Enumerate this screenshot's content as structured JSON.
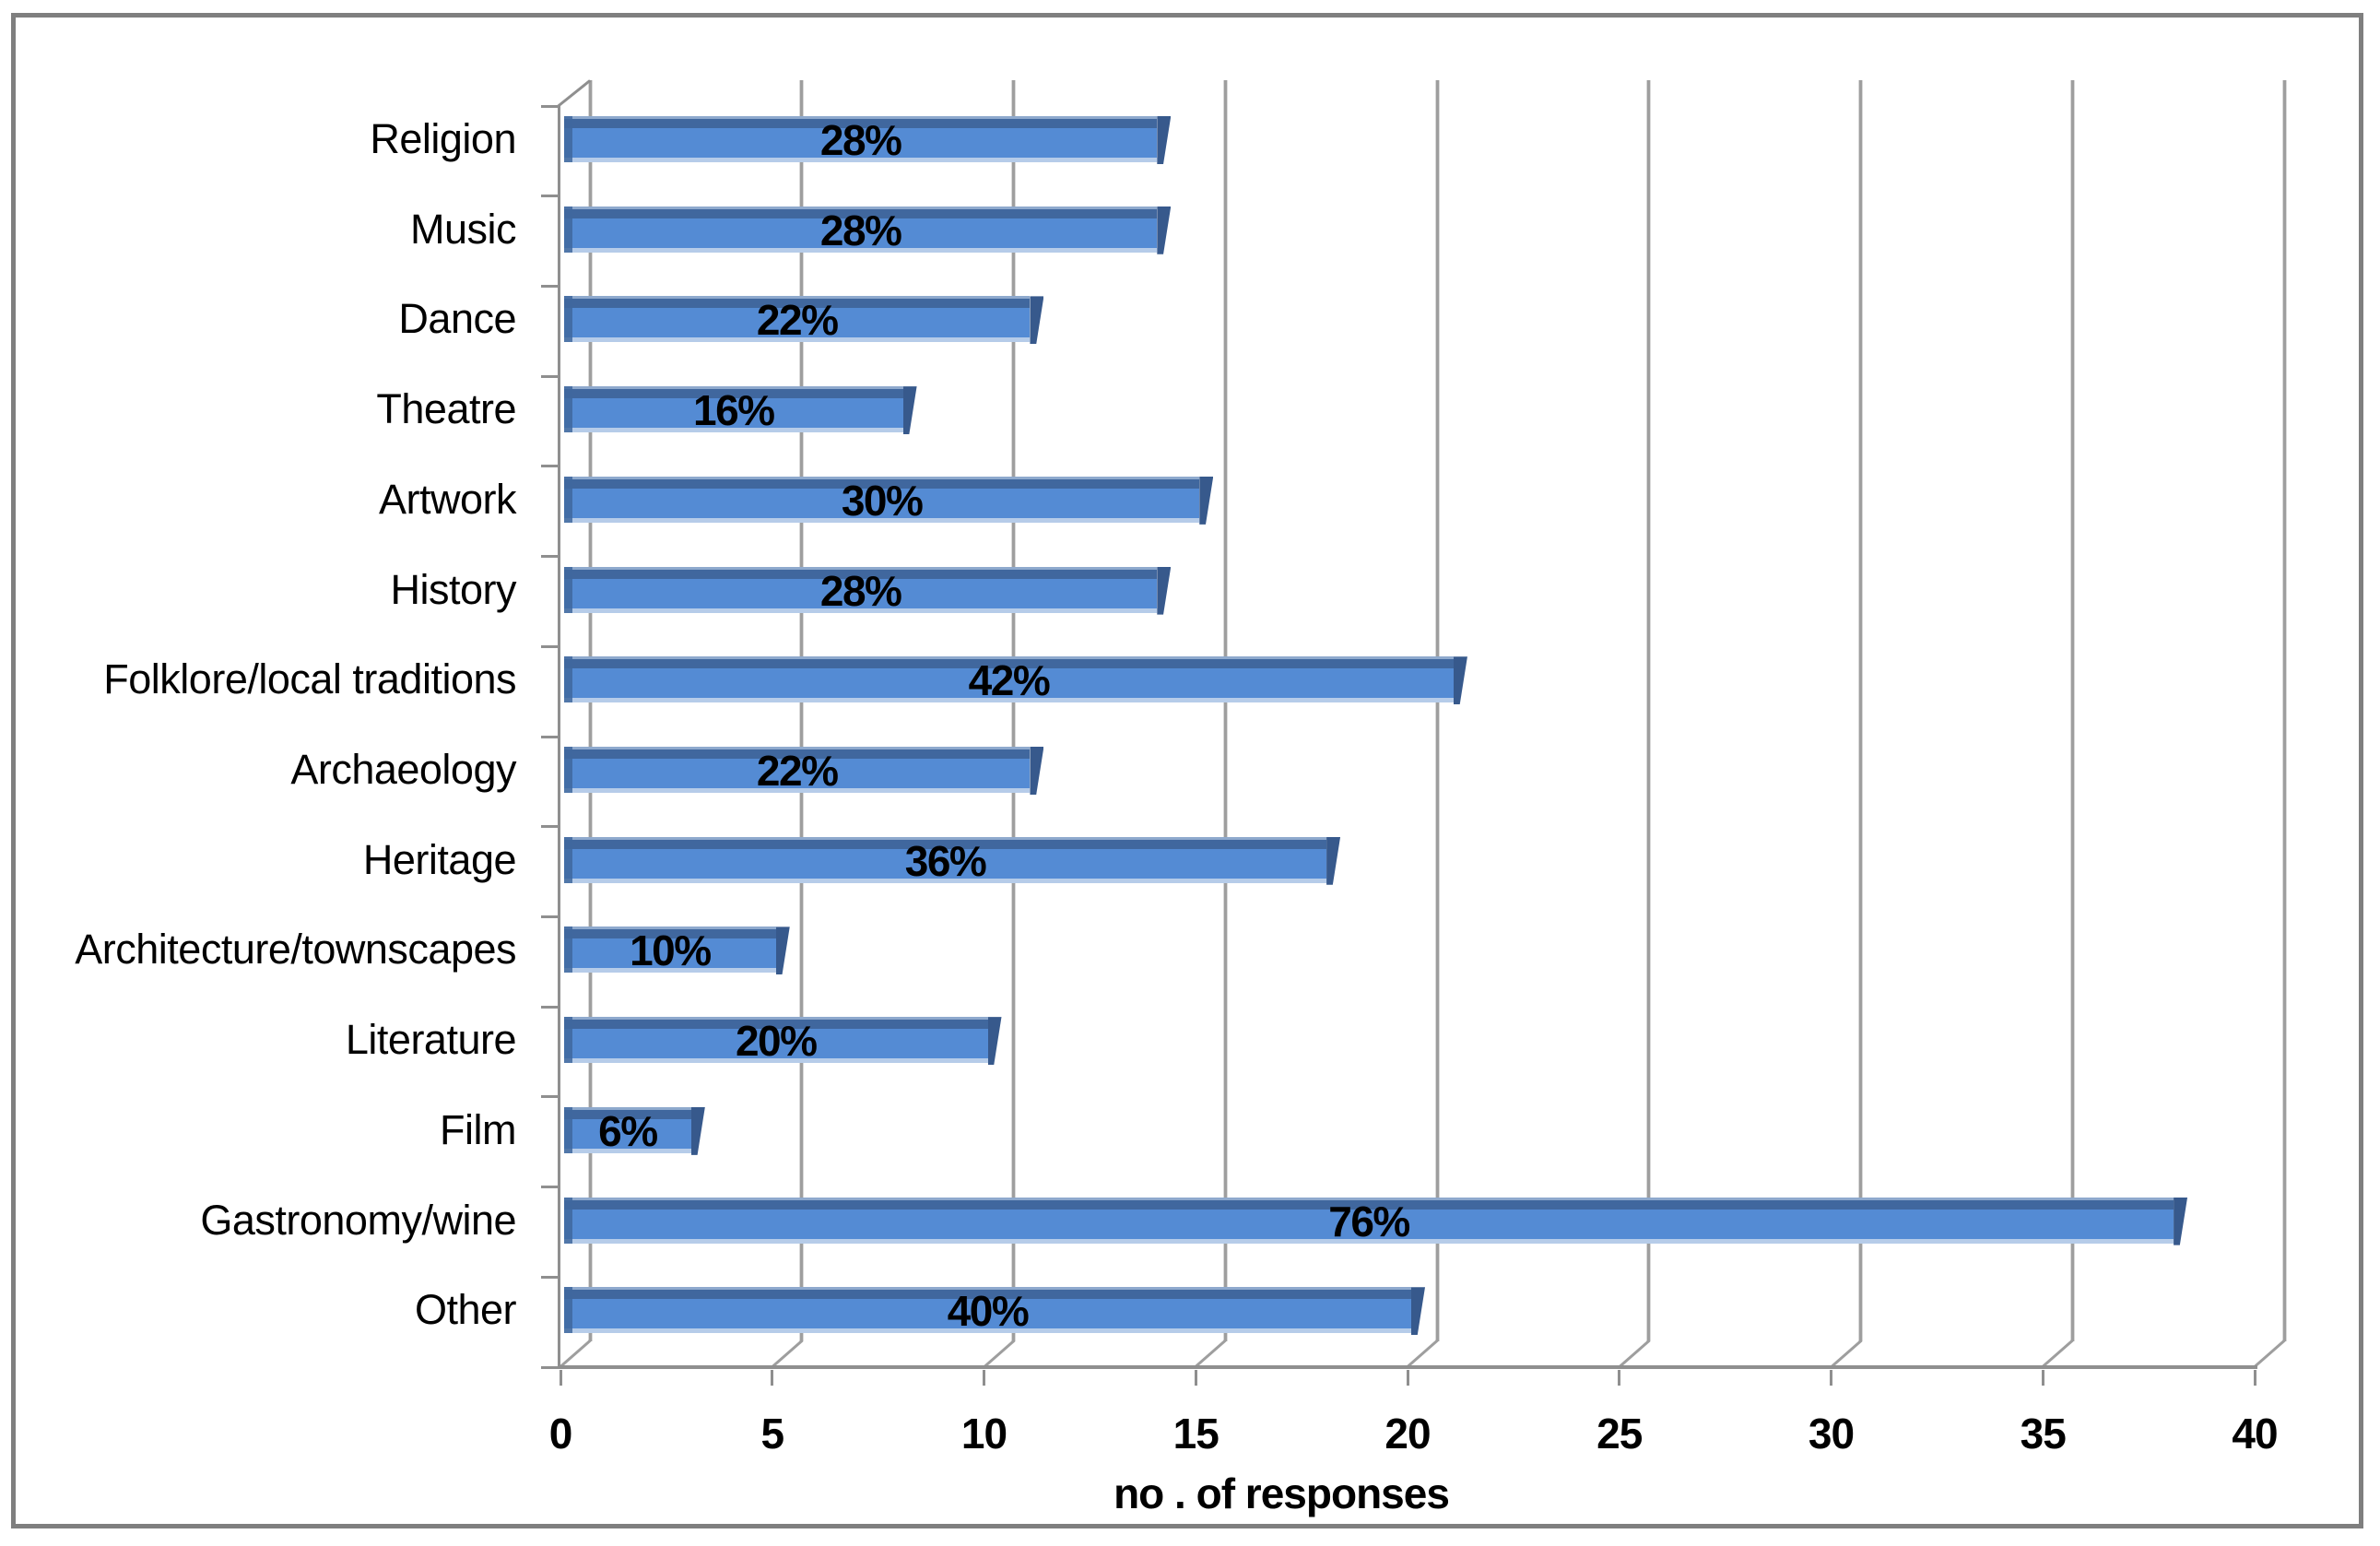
{
  "chart_data": {
    "type": "bar",
    "orientation": "horizontal",
    "style": "3d-clustered",
    "title": "",
    "xlabel": "no . of responses",
    "ylabel": "",
    "xlim": [
      0,
      40
    ],
    "x_ticks": [
      0,
      5,
      10,
      15,
      20,
      25,
      30,
      35,
      40
    ],
    "grid": true,
    "legend": false,
    "categories": [
      "Religion",
      "Music",
      "Dance",
      "Theatre",
      "Artwork",
      "History",
      "Folklore/local traditions",
      "Archaeology",
      "Heritage",
      "Architecture/townscapes",
      "Literature",
      "Film",
      "Gastronomy/wine",
      "Other"
    ],
    "values": [
      14,
      14,
      11,
      8,
      15,
      14,
      21,
      11,
      18,
      5,
      10,
      3,
      38,
      20
    ],
    "percent_values": [
      28,
      28,
      22,
      16,
      30,
      28,
      42,
      22,
      36,
      10,
      20,
      6,
      76,
      40
    ],
    "data_labels": [
      "28%",
      "28%",
      "22%",
      "16%",
      "30%",
      "28%",
      "42%",
      "22%",
      "36%",
      "10%",
      "20%",
      "6%",
      "76%",
      "40%"
    ],
    "colors": {
      "bar_body": "#548bd4",
      "bar_dark": "#40679e",
      "bar_hairline": "#8ea9cd",
      "bar_bottom": "#b6cce9",
      "bar_cap": "#37598c",
      "grid": "#9e9e9e",
      "axis": "#8f8f8f",
      "frame": "#7f7f7f",
      "text": "#000000"
    }
  }
}
